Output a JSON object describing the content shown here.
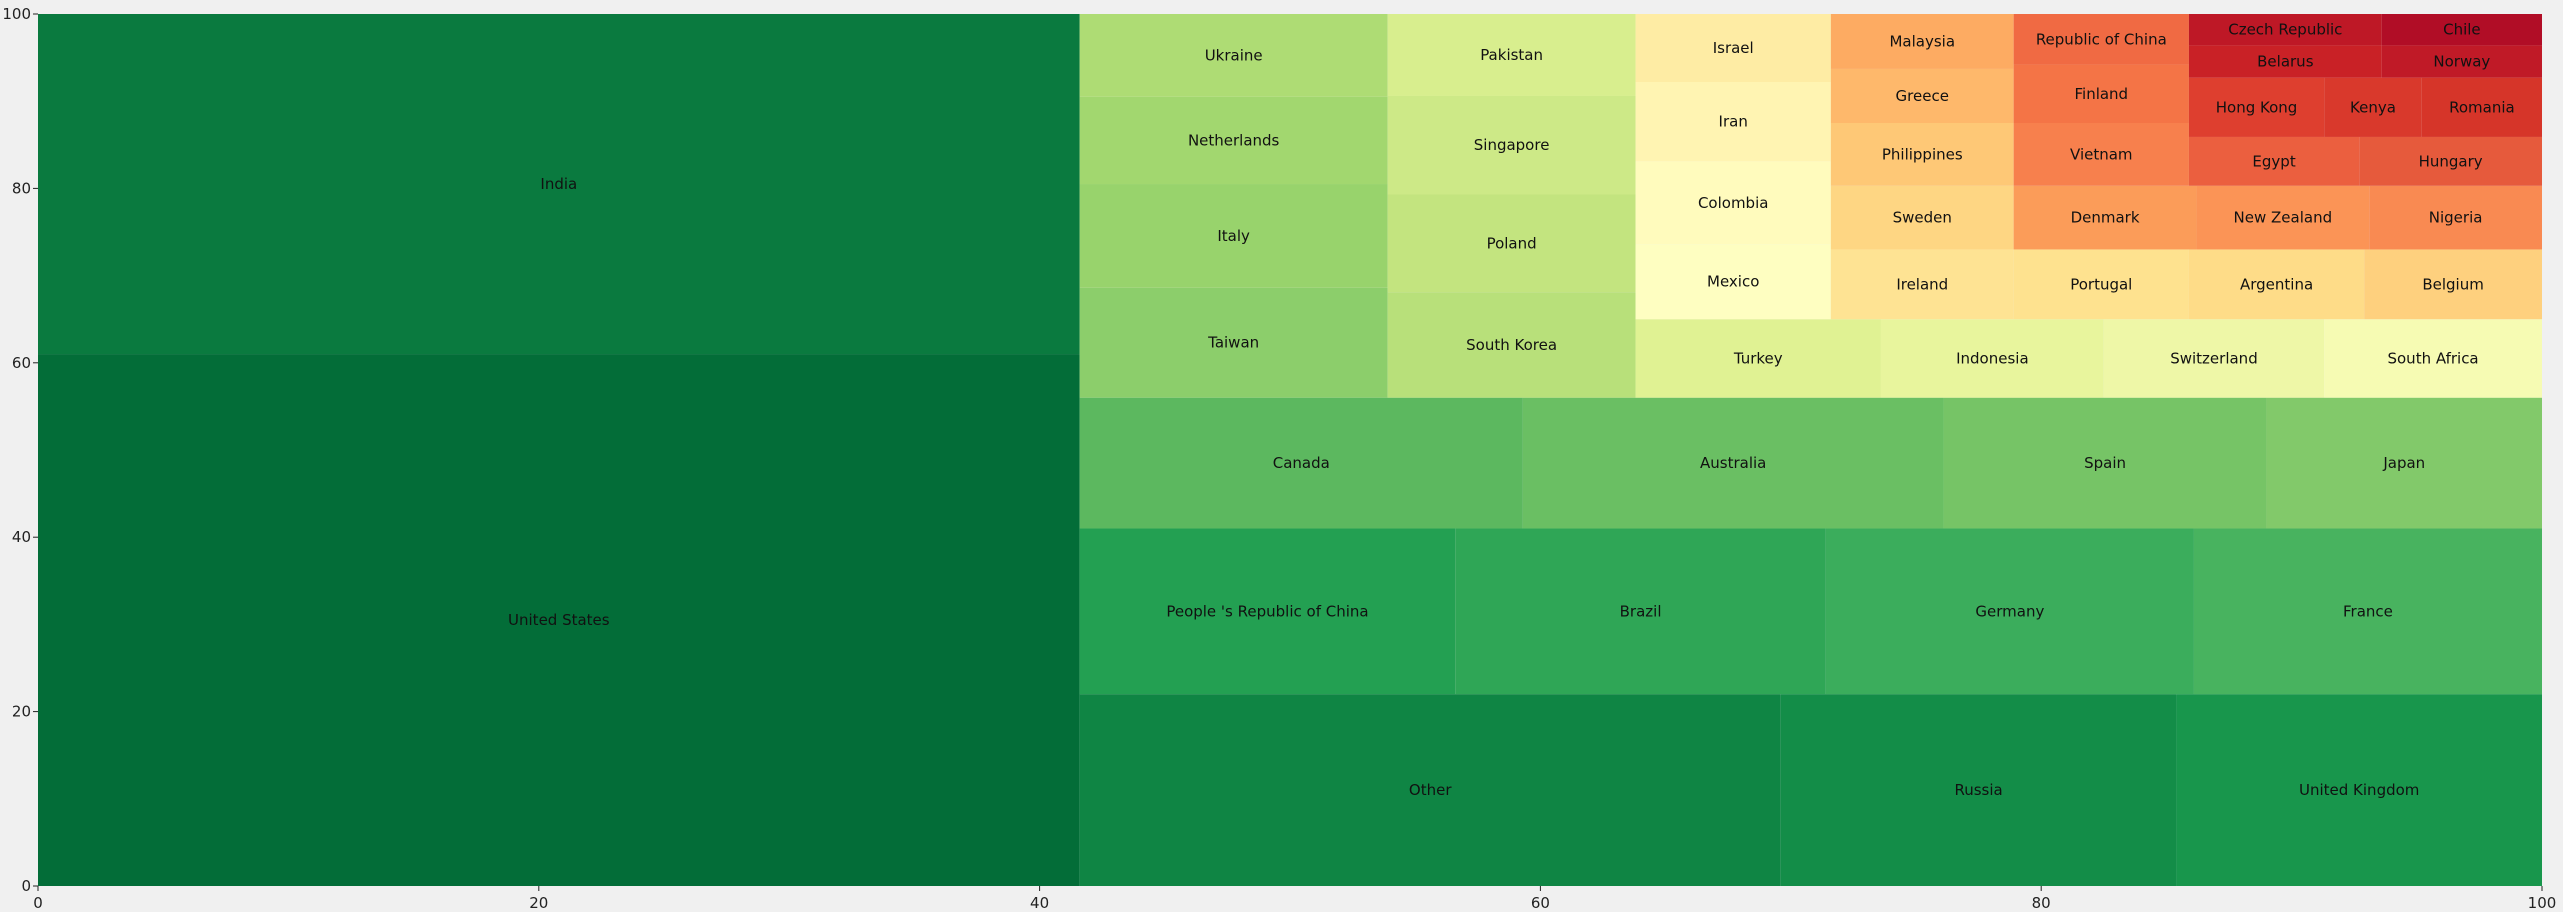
{
  "chart_data": {
    "type": "treemap",
    "xlim": [
      0,
      100
    ],
    "ylim": [
      0,
      100
    ],
    "xticks": [
      0,
      20,
      40,
      60,
      80,
      100
    ],
    "yticks": [
      0,
      20,
      40,
      60,
      80,
      100
    ],
    "grid": false,
    "cells": [
      {
        "label": "United States",
        "x0": 0,
        "x1": 41.6,
        "y0": 0,
        "y1": 61,
        "color": "#036d38"
      },
      {
        "label": "India",
        "x0": 0,
        "x1": 41.6,
        "y0": 61,
        "y1": 100,
        "color": "#0a7a3f"
      },
      {
        "label": "Other",
        "x0": 41.6,
        "x1": 69.6,
        "y0": 0,
        "y1": 22,
        "color": "#0f8544"
      },
      {
        "label": "Russia",
        "x0": 69.6,
        "x1": 85.4,
        "y0": 0,
        "y1": 22,
        "color": "#138d48"
      },
      {
        "label": "United Kingdom",
        "x0": 85.4,
        "x1": 100,
        "y0": 0,
        "y1": 22,
        "color": "#18964c"
      },
      {
        "label": "People 's Republic of China",
        "x0": 41.6,
        "x1": 56.6,
        "y0": 22,
        "y1": 41,
        "color": "#23a052"
      },
      {
        "label": "Brazil",
        "x0": 56.6,
        "x1": 71.4,
        "y0": 22,
        "y1": 41,
        "color": "#2fa656"
      },
      {
        "label": "Germany",
        "x0": 71.4,
        "x1": 86.1,
        "y0": 22,
        "y1": 41,
        "color": "#3bad5c"
      },
      {
        "label": "France",
        "x0": 86.1,
        "x1": 100,
        "y0": 22,
        "y1": 41,
        "color": "#48b35f"
      },
      {
        "label": "Canada",
        "x0": 41.6,
        "x1": 59.3,
        "y0": 41,
        "y1": 56,
        "color": "#5cb85f"
      },
      {
        "label": "Australia",
        "x0": 59.3,
        "x1": 76.1,
        "y0": 41,
        "y1": 56,
        "color": "#6abf63"
      },
      {
        "label": "Spain",
        "x0": 76.1,
        "x1": 89.0,
        "y0": 41,
        "y1": 56,
        "color": "#76c466"
      },
      {
        "label": "Japan",
        "x0": 89.0,
        "x1": 100,
        "y0": 41,
        "y1": 56,
        "color": "#82c96a"
      },
      {
        "label": "Taiwan",
        "x0": 41.6,
        "x1": 53.9,
        "y0": 56,
        "y1": 68.6,
        "color": "#8cce6b"
      },
      {
        "label": "Italy",
        "x0": 41.6,
        "x1": 53.9,
        "y0": 68.6,
        "y1": 80.5,
        "color": "#98d36c"
      },
      {
        "label": "Netherlands",
        "x0": 41.6,
        "x1": 53.9,
        "y0": 80.5,
        "y1": 90.5,
        "color": "#a2d76f"
      },
      {
        "label": "Ukraine",
        "x0": 41.6,
        "x1": 53.9,
        "y0": 90.5,
        "y1": 100,
        "color": "#aedc74"
      },
      {
        "label": "South Korea",
        "x0": 53.9,
        "x1": 63.8,
        "y0": 56,
        "y1": 68.1,
        "color": "#b8e07a"
      },
      {
        "label": "Poland",
        "x0": 53.9,
        "x1": 63.8,
        "y0": 68.1,
        "y1": 79.3,
        "color": "#c3e47f"
      },
      {
        "label": "Singapore",
        "x0": 53.9,
        "x1": 63.8,
        "y0": 79.3,
        "y1": 90.6,
        "color": "#cde987"
      },
      {
        "label": "Pakistan",
        "x0": 53.9,
        "x1": 63.8,
        "y0": 90.6,
        "y1": 100,
        "color": "#d8ee8e"
      },
      {
        "label": "Turkey",
        "x0": 63.8,
        "x1": 73.6,
        "y0": 56,
        "y1": 65,
        "color": "#e0f293"
      },
      {
        "label": "Indonesia",
        "x0": 73.6,
        "x1": 82.5,
        "y0": 56,
        "y1": 65,
        "color": "#e8f59d"
      },
      {
        "label": "Switzerland",
        "x0": 82.5,
        "x1": 91.3,
        "y0": 56,
        "y1": 65,
        "color": "#eef7a7"
      },
      {
        "label": "South Africa",
        "x0": 91.3,
        "x1": 100,
        "y0": 56,
        "y1": 65,
        "color": "#f6fbb3"
      },
      {
        "label": "Mexico",
        "x0": 63.8,
        "x1": 71.6,
        "y0": 65,
        "y1": 73.6,
        "color": "#fefec1"
      },
      {
        "label": "Colombia",
        "x0": 63.8,
        "x1": 71.6,
        "y0": 73.6,
        "y1": 83.1,
        "color": "#fffbbd"
      },
      {
        "label": "Iran",
        "x0": 63.8,
        "x1": 71.6,
        "y0": 83.1,
        "y1": 92.2,
        "color": "#fff4b2"
      },
      {
        "label": "Israel",
        "x0": 63.8,
        "x1": 71.6,
        "y0": 92.2,
        "y1": 100,
        "color": "#feeca4"
      },
      {
        "label": "Ireland",
        "x0": 71.6,
        "x1": 78.9,
        "y0": 65,
        "y1": 73,
        "color": "#fee393"
      },
      {
        "label": "Sweden",
        "x0": 71.6,
        "x1": 78.9,
        "y0": 73,
        "y1": 80.3,
        "color": "#fed683"
      },
      {
        "label": "Philippines",
        "x0": 71.6,
        "x1": 78.9,
        "y0": 80.3,
        "y1": 87.5,
        "color": "#fec876"
      },
      {
        "label": "Greece",
        "x0": 71.6,
        "x1": 78.9,
        "y0": 87.5,
        "y1": 93.7,
        "color": "#feb86b"
      },
      {
        "label": "Malaysia",
        "x0": 71.6,
        "x1": 78.9,
        "y0": 93.7,
        "y1": 100,
        "color": "#fdab62"
      },
      {
        "label": "Portugal",
        "x0": 78.9,
        "x1": 85.9,
        "y0": 65,
        "y1": 73,
        "color": "#fee28f"
      },
      {
        "label": "Argentina",
        "x0": 85.9,
        "x1": 92.9,
        "y0": 65,
        "y1": 73,
        "color": "#fedc88"
      },
      {
        "label": "Belgium",
        "x0": 92.9,
        "x1": 100,
        "y0": 65,
        "y1": 73,
        "color": "#fed07e"
      },
      {
        "label": "Denmark",
        "x0": 78.9,
        "x1": 86.2,
        "y0": 73,
        "y1": 80.3,
        "color": "#fb9c59"
      },
      {
        "label": "New Zealand",
        "x0": 86.2,
        "x1": 93.1,
        "y0": 73,
        "y1": 80.3,
        "color": "#fb9456"
      },
      {
        "label": "Nigeria",
        "x0": 93.1,
        "x1": 100,
        "y0": 73,
        "y1": 80.3,
        "color": "#f98a52"
      },
      {
        "label": "Vietnam",
        "x0": 78.9,
        "x1": 85.9,
        "y0": 80.3,
        "y1": 87.5,
        "color": "#f7804d"
      },
      {
        "label": "Egypt",
        "x0": 85.9,
        "x1": 92.7,
        "y0": 80.3,
        "y1": 85.9,
        "color": "#eb5f3f"
      },
      {
        "label": "Hungary",
        "x0": 92.7,
        "x1": 100,
        "y0": 80.3,
        "y1": 85.9,
        "color": "#e65a3c"
      },
      {
        "label": "Finland",
        "x0": 78.9,
        "x1": 85.9,
        "y0": 87.5,
        "y1": 94.2,
        "color": "#f47446"
      },
      {
        "label": "Republic of China",
        "x0": 78.9,
        "x1": 85.9,
        "y0": 94.2,
        "y1": 100,
        "color": "#f06a43"
      },
      {
        "label": "Hong Kong",
        "x0": 85.9,
        "x1": 91.3,
        "y0": 85.9,
        "y1": 92.7,
        "color": "#de3f2f"
      },
      {
        "label": "Kenya",
        "x0": 91.3,
        "x1": 95.2,
        "y0": 85.9,
        "y1": 92.7,
        "color": "#d9392c"
      },
      {
        "label": "Romania",
        "x0": 95.2,
        "x1": 100,
        "y0": 85.9,
        "y1": 92.7,
        "color": "#d63529"
      },
      {
        "label": "Belarus",
        "x0": 85.9,
        "x1": 93.6,
        "y0": 92.7,
        "y1": 96.4,
        "color": "#c92126"
      },
      {
        "label": "Norway",
        "x0": 93.6,
        "x1": 100,
        "y0": 92.7,
        "y1": 96.4,
        "color": "#c01a27"
      },
      {
        "label": "Czech Republic",
        "x0": 85.9,
        "x1": 93.6,
        "y0": 96.4,
        "y1": 100,
        "color": "#be1826"
      },
      {
        "label": "Chile",
        "x0": 93.6,
        "x1": 100,
        "y0": 96.4,
        "y1": 100,
        "color": "#b10d26"
      }
    ]
  }
}
